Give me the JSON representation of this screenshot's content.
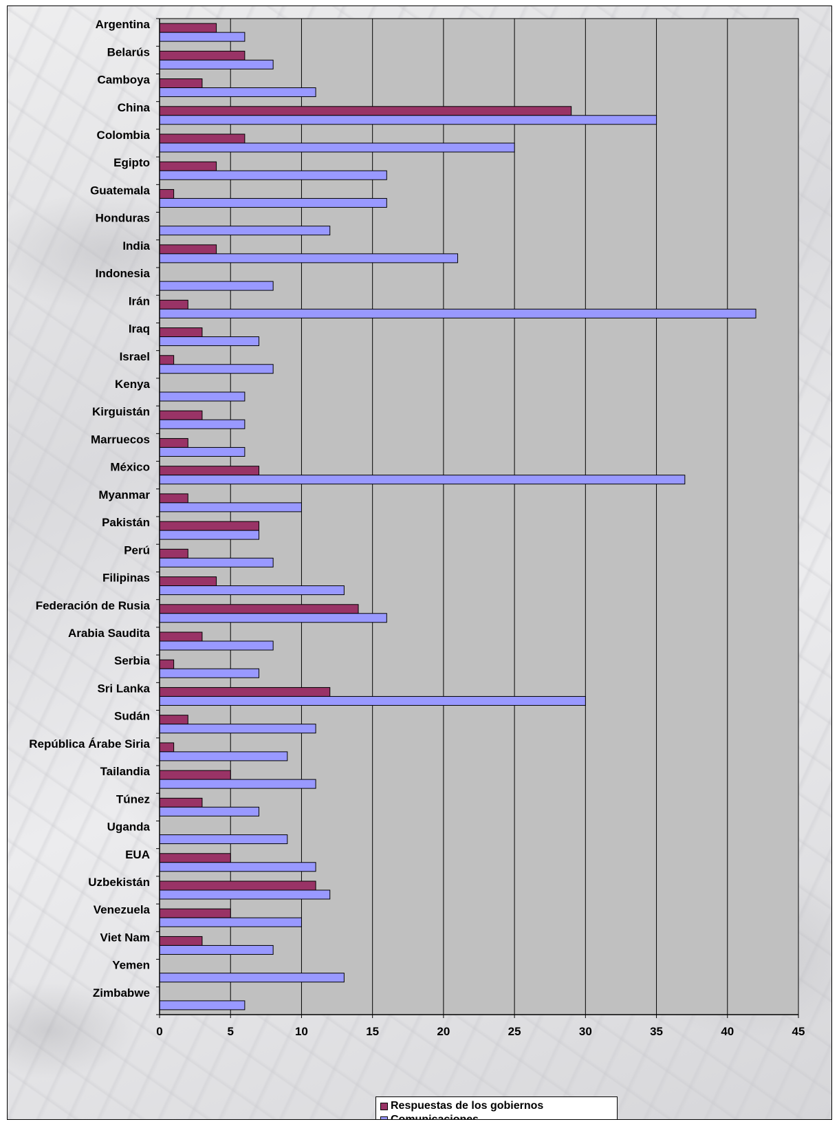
{
  "chart_data": {
    "type": "bar",
    "orientation": "horizontal",
    "categories": [
      "Argentina",
      "Belarús",
      "Camboya",
      "China",
      "Colombia",
      "Egipto",
      "Guatemala",
      "Honduras",
      "India",
      "Indonesia",
      "Irán",
      "Iraq",
      "Israel",
      "Kenya",
      "Kirguistán",
      "Marruecos",
      "México",
      "Myanmar",
      "Pakistán",
      "Perú",
      "Filipinas",
      "Federación de Rusia",
      "Arabia Saudita",
      "Serbia",
      "Sri Lanka",
      "Sudán",
      "República Árabe Siria",
      "Tailandia",
      "Túnez",
      "Uganda",
      "EUA",
      "Uzbekistán",
      "Venezuela",
      "Viet Nam",
      "Yemen",
      "Zimbabwe"
    ],
    "series": [
      {
        "name": "Respuestas de los gobiernos",
        "color": "#993366",
        "values": [
          4,
          6,
          3,
          29,
          6,
          4,
          1,
          0,
          4,
          0,
          2,
          3,
          1,
          0,
          3,
          2,
          7,
          2,
          7,
          2,
          4,
          14,
          3,
          1,
          12,
          2,
          1,
          5,
          3,
          0,
          5,
          11,
          5,
          3,
          0,
          0
        ]
      },
      {
        "name": "Comunicaciones",
        "color": "#9999FF",
        "values": [
          6,
          8,
          11,
          35,
          25,
          16,
          16,
          12,
          21,
          8,
          42,
          7,
          8,
          6,
          6,
          6,
          37,
          10,
          7,
          8,
          13,
          16,
          8,
          7,
          30,
          11,
          9,
          11,
          7,
          9,
          11,
          12,
          10,
          8,
          13,
          6
        ]
      }
    ],
    "xlim": [
      0,
      45
    ],
    "x_ticks": [
      "0",
      "5",
      "10",
      "15",
      "20",
      "25",
      "30",
      "35",
      "40",
      "45"
    ],
    "grid": true,
    "legend_position": "bottom",
    "plot_background": "#C0C0C0"
  }
}
